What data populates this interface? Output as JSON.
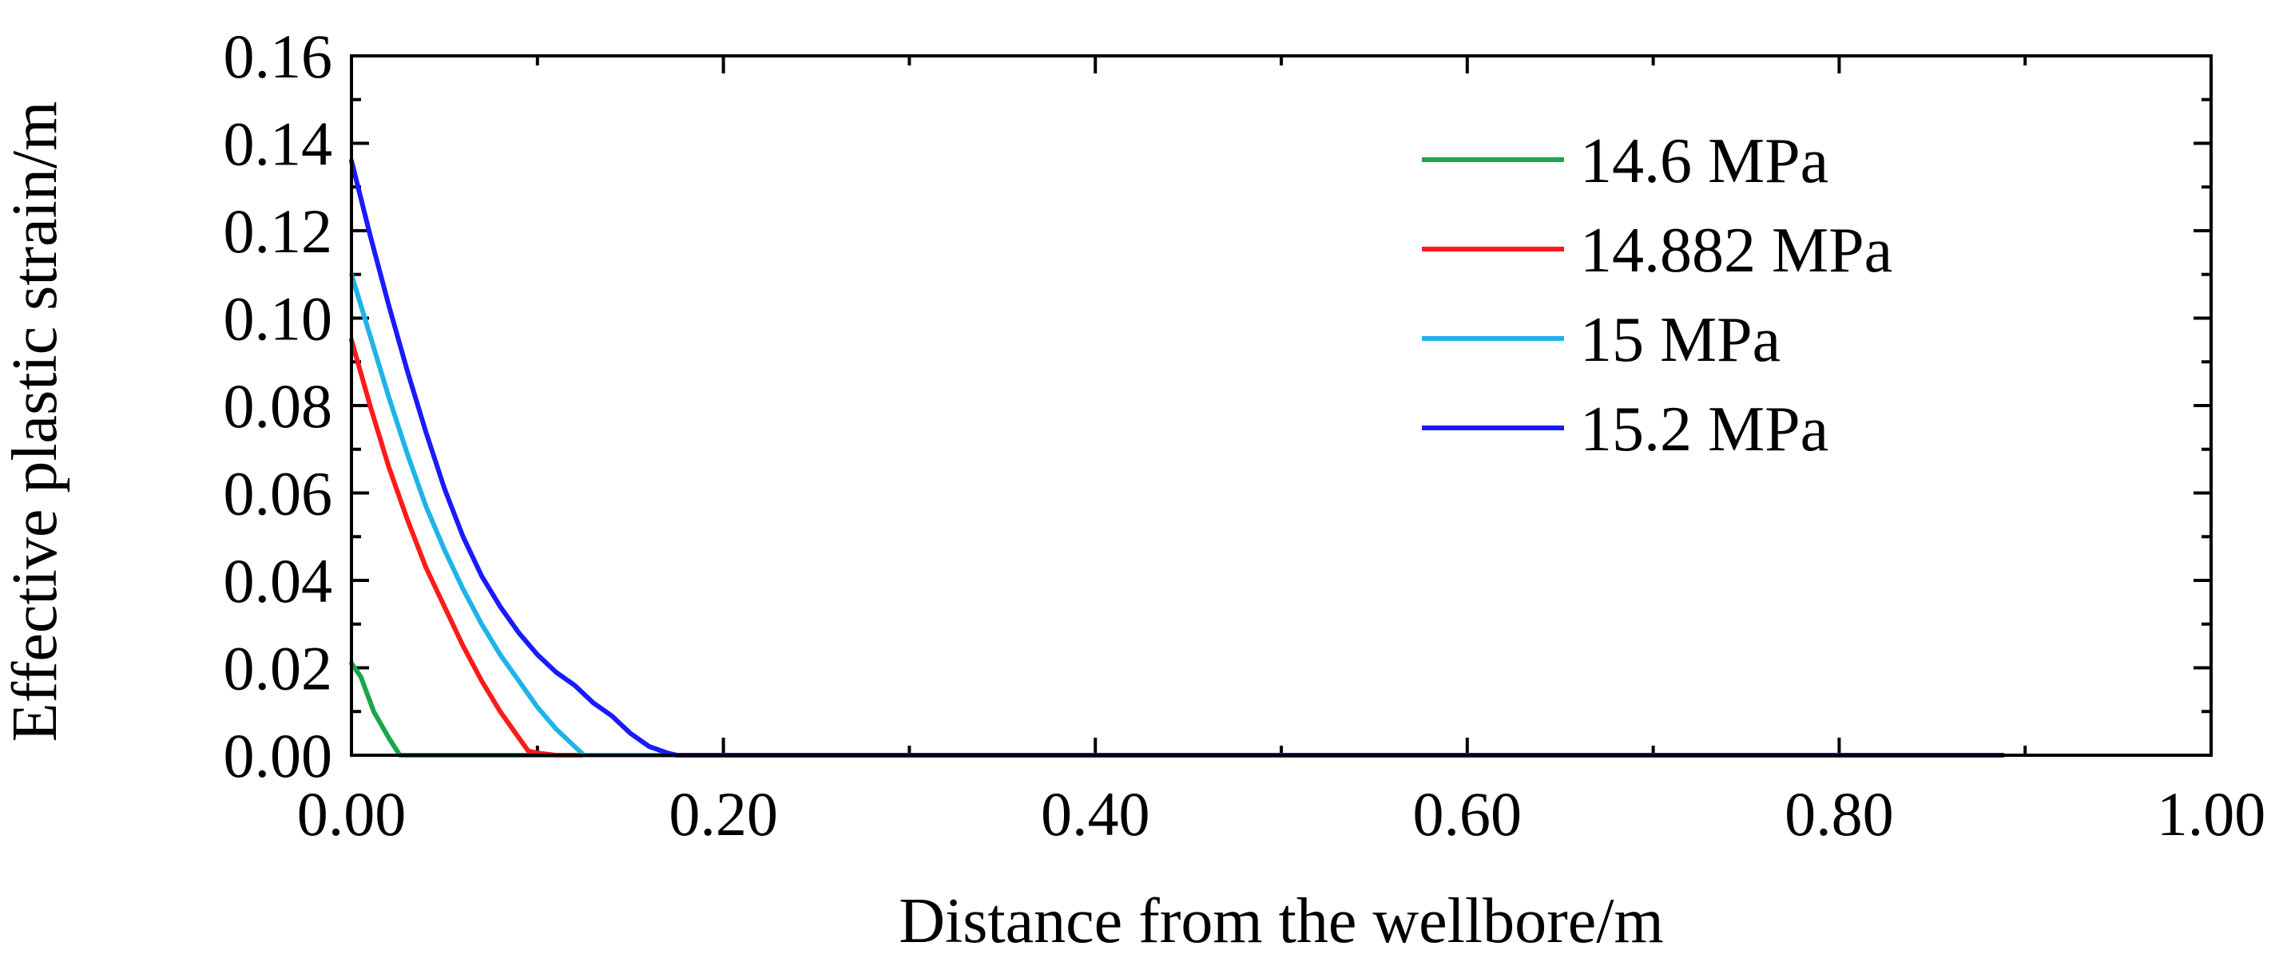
{
  "chart_data": {
    "type": "line",
    "title": "",
    "xlabel": "Distance from the wellbore/m",
    "ylabel": "Effective plastic strain/m",
    "xlim": [
      0,
      1.0
    ],
    "ylim": [
      0,
      0.16
    ],
    "x_ticks": [
      0.0,
      0.2,
      0.4,
      0.6,
      0.8,
      1.0
    ],
    "x_tick_labels": [
      "0.00",
      "0.20",
      "0.40",
      "0.60",
      "0.80",
      "1.00"
    ],
    "x_minor_ticks": [
      0.1,
      0.3,
      0.5,
      0.7,
      0.9
    ],
    "y_ticks": [
      0.0,
      0.02,
      0.04,
      0.06,
      0.08,
      0.1,
      0.12,
      0.14,
      0.16
    ],
    "y_tick_labels": [
      "0.00",
      "0.02",
      "0.04",
      "0.06",
      "0.08",
      "0.10",
      "0.12",
      "0.14",
      "0.16"
    ],
    "y_minor_ticks": [
      0.01,
      0.03,
      0.05,
      0.07,
      0.09,
      0.11,
      0.13,
      0.15
    ],
    "grid": false,
    "legend_position": "top-right",
    "series": [
      {
        "name": "14.6 MPa",
        "color": "#1aa64a",
        "x": [
          0.0,
          0.005,
          0.012,
          0.02,
          0.026,
          0.5,
          0.888
        ],
        "y": [
          0.021,
          0.018,
          0.01,
          0.004,
          0.0,
          0.0,
          0.0
        ]
      },
      {
        "name": "14.882 MPa",
        "color": "#ff1a1a",
        "x": [
          0.0,
          0.01,
          0.02,
          0.03,
          0.04,
          0.05,
          0.06,
          0.07,
          0.08,
          0.09,
          0.095,
          0.1,
          0.11,
          0.125,
          0.5,
          0.888
        ],
        "y": [
          0.095,
          0.08,
          0.066,
          0.054,
          0.043,
          0.034,
          0.025,
          0.017,
          0.01,
          0.004,
          0.001,
          0.0005,
          0.0,
          0.0,
          0.0,
          0.0
        ]
      },
      {
        "name": "15 MPa",
        "color": "#1fb3e8",
        "x": [
          0.0,
          0.01,
          0.02,
          0.03,
          0.04,
          0.05,
          0.06,
          0.07,
          0.08,
          0.09,
          0.1,
          0.11,
          0.12,
          0.125,
          0.13,
          0.15,
          0.5,
          0.888
        ],
        "y": [
          0.11,
          0.096,
          0.082,
          0.069,
          0.057,
          0.047,
          0.038,
          0.03,
          0.023,
          0.017,
          0.011,
          0.006,
          0.002,
          0.0,
          0.0,
          0.0,
          0.0,
          0.0
        ]
      },
      {
        "name": "15.2 MPa",
        "color": "#1a1aff",
        "x": [
          0.0,
          0.01,
          0.02,
          0.03,
          0.04,
          0.05,
          0.06,
          0.07,
          0.08,
          0.09,
          0.1,
          0.11,
          0.12,
          0.13,
          0.14,
          0.15,
          0.16,
          0.17,
          0.175,
          0.5,
          0.888
        ],
        "y": [
          0.136,
          0.119,
          0.103,
          0.088,
          0.074,
          0.061,
          0.05,
          0.041,
          0.034,
          0.028,
          0.023,
          0.019,
          0.016,
          0.012,
          0.009,
          0.005,
          0.002,
          0.0005,
          0.0,
          0.0,
          0.0
        ]
      }
    ]
  }
}
